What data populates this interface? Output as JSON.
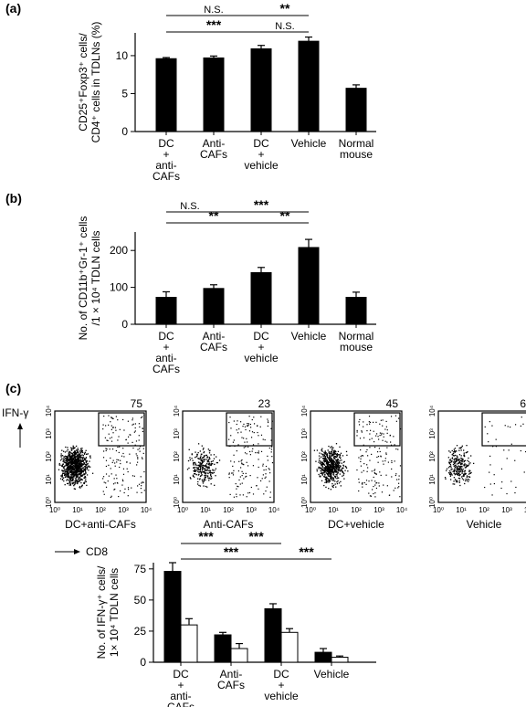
{
  "panel_labels": {
    "a": "(a)",
    "b": "(b)",
    "c": "(c)"
  },
  "chart_data": [
    {
      "type": "bar",
      "panel": "(a)",
      "ylabel_lines": [
        "CD25⁺Foxp3⁺ cells/",
        "CD4⁺ cells in TDLNs (%)"
      ],
      "categories": [
        [
          "DC",
          "+",
          "anti-",
          "CAFs"
        ],
        [
          "Anti-",
          "CAFs"
        ],
        [
          "DC",
          "+",
          "vehicle"
        ],
        [
          "Vehicle"
        ],
        [
          "Normal",
          "mouse"
        ]
      ],
      "values": [
        9.6,
        9.7,
        10.9,
        11.9,
        5.7
      ],
      "errors": [
        0.15,
        0.25,
        0.45,
        0.55,
        0.45
      ],
      "ylim": [
        0,
        13
      ],
      "yticks": [
        0,
        5,
        10
      ],
      "significance": [
        {
          "from": 0,
          "to": 2,
          "label": "N.S."
        },
        {
          "from": 2,
          "to": 3,
          "label": "**"
        },
        {
          "from": 0,
          "to": 2,
          "label": "***"
        },
        {
          "from": 2,
          "to": 3,
          "label": "N.S."
        }
      ]
    },
    {
      "type": "bar",
      "panel": "(b)",
      "ylabel_lines": [
        "No. of CD11b⁺Gr-1⁺ cells",
        "/1 × 10⁴ TDLN cells"
      ],
      "categories": [
        [
          "DC",
          "+",
          "anti-",
          "CAFs"
        ],
        [
          "Anti-",
          "CAFs"
        ],
        [
          "DC",
          "+",
          "vehicle"
        ],
        [
          "Vehicle"
        ],
        [
          "Normal",
          "mouse"
        ]
      ],
      "values": [
        73,
        97,
        140,
        208,
        73
      ],
      "errors": [
        15,
        10,
        14,
        22,
        14
      ],
      "ylim": [
        0,
        250
      ],
      "yticks": [
        0,
        100,
        200
      ],
      "significance": [
        {
          "from": 0,
          "to": 1,
          "label": "N.S."
        },
        {
          "from": 1,
          "to": 3,
          "label": "***"
        },
        {
          "from": 0,
          "to": 2,
          "label": "**"
        },
        {
          "from": 2,
          "to": 3,
          "label": "**"
        }
      ]
    },
    {
      "type": "scatter",
      "panel": "(c)",
      "y_axis_label": "IFN-γ",
      "x_axis_label": "CD8",
      "axis_ticks": [
        "10⁰",
        "10¹",
        "10²",
        "10³",
        "10⁴"
      ],
      "plots": [
        {
          "name": "DC+anti-CAFs",
          "gate_percent": "75"
        },
        {
          "name": "Anti-CAFs",
          "gate_percent": "23"
        },
        {
          "name": "DC+vehicle",
          "gate_percent": "45"
        },
        {
          "name": "Vehicle",
          "gate_percent": "6"
        }
      ]
    },
    {
      "type": "bar",
      "panel": "(c)",
      "ylabel_lines": [
        "No. of IFN-γ⁺ cells/",
        "1× 10⁴ TDLN cells"
      ],
      "categories": [
        [
          "DC",
          "+",
          "anti-",
          "CAFs"
        ],
        [
          "Anti-",
          "CAFs"
        ],
        [
          "DC",
          "+",
          "vehicle"
        ],
        [
          "Vehicle"
        ]
      ],
      "series": [
        {
          "fill": "#000000",
          "values": [
            73,
            22,
            43,
            8
          ],
          "errors": [
            7,
            2,
            4,
            3
          ]
        },
        {
          "fill": "#ffffff",
          "values": [
            30,
            11,
            24,
            4
          ],
          "errors": [
            5,
            4,
            3,
            1
          ]
        }
      ],
      "ylim": [
        0,
        80
      ],
      "yticks": [
        0,
        25,
        50,
        75
      ],
      "significance": [
        {
          "from": 0,
          "to": 1,
          "label": "***"
        },
        {
          "from": 1,
          "to": 2,
          "label": "***"
        },
        {
          "from": 0,
          "to": 2,
          "label": "***"
        },
        {
          "from": 2,
          "to": 3,
          "label": "***"
        }
      ]
    }
  ]
}
